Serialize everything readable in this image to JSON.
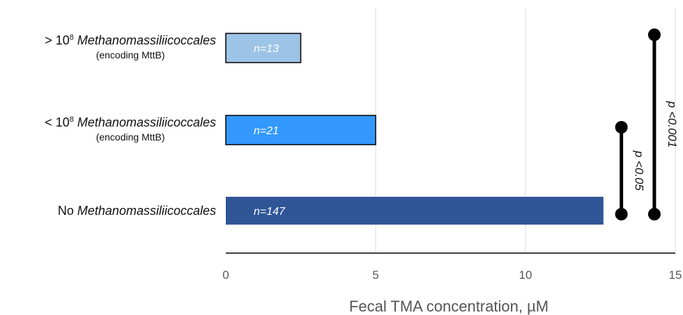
{
  "chart_data": {
    "type": "bar",
    "orientation": "horizontal",
    "categories": [
      {
        "prefix": "> 10",
        "sup": "8",
        "name": "Methanomassiliicoccales",
        "sub": "(encoding MttB)"
      },
      {
        "prefix": "< 10",
        "sup": "8",
        "name": "Methanomassiliicoccales",
        "sub": "(encoding MttB)"
      },
      {
        "prefix": "No",
        "sup": "",
        "name": "Methanomassiliicoccales",
        "sub": ""
      }
    ],
    "values": [
      2.5,
      5.0,
      12.6
    ],
    "bar_labels": [
      "n=13",
      "n=21",
      "n=147"
    ],
    "bar_colors": [
      "#9dc3e6",
      "#3399ff",
      "#2f5597"
    ],
    "xlabel": "Fecal TMA concentration, µM",
    "xlim": [
      0,
      15
    ],
    "xticks": [
      "0",
      "5",
      "10",
      "15"
    ],
    "grid": "vertical",
    "significance": [
      {
        "label": "p <0.05",
        "x": 13.2,
        "from_category": 1,
        "to_category": 2
      },
      {
        "label": "p <0.001",
        "x": 14.3,
        "from_category": 0,
        "to_category": 2
      }
    ]
  }
}
